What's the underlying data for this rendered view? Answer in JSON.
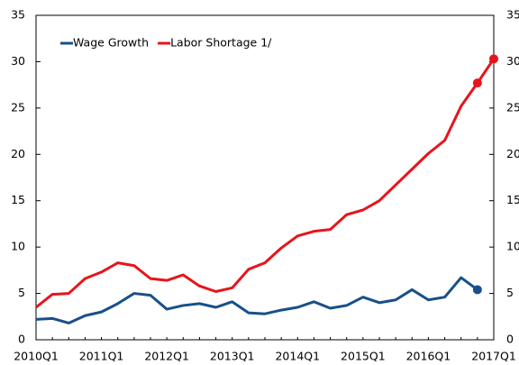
{
  "chart_data": {
    "type": "line",
    "categories": [
      "2010Q1",
      "2010Q2",
      "2010Q3",
      "2010Q4",
      "2011Q1",
      "2011Q2",
      "2011Q3",
      "2011Q4",
      "2012Q1",
      "2012Q2",
      "2012Q3",
      "2012Q4",
      "2013Q1",
      "2013Q2",
      "2013Q3",
      "2013Q4",
      "2014Q1",
      "2014Q2",
      "2014Q3",
      "2014Q4",
      "2015Q1",
      "2015Q2",
      "2015Q3",
      "2015Q4",
      "2016Q1",
      "2016Q2",
      "2016Q3",
      "2016Q4",
      "2017Q1"
    ],
    "x_label_every": 4,
    "series": [
      {
        "name": "Wage Growth",
        "color": "#17508a",
        "markers": [
          27
        ],
        "values": [
          2.2,
          2.3,
          1.8,
          2.6,
          3.0,
          3.9,
          5.0,
          4.8,
          3.3,
          3.7,
          3.9,
          3.5,
          4.1,
          2.9,
          2.8,
          3.2,
          3.5,
          4.1,
          3.4,
          3.7,
          4.6,
          4.0,
          4.3,
          5.4,
          4.3,
          4.6,
          6.7,
          5.4,
          null
        ]
      },
      {
        "name": "Labor Shortage 1/",
        "color": "#e8141b",
        "markers": [
          27,
          28
        ],
        "values": [
          3.5,
          4.9,
          5.0,
          6.6,
          7.3,
          8.3,
          8.0,
          6.6,
          6.4,
          7.0,
          5.8,
          5.2,
          5.6,
          7.6,
          8.3,
          9.9,
          11.2,
          11.7,
          11.9,
          13.5,
          14.0,
          15.0,
          16.7,
          18.4,
          20.1,
          21.5,
          25.2,
          27.7,
          30.3
        ]
      }
    ],
    "ylim": [
      0,
      35
    ],
    "yticks": [
      0,
      5,
      10,
      15,
      20,
      25,
      30,
      35
    ],
    "y2lim": [
      0,
      35
    ],
    "y2ticks": [
      0,
      5,
      10,
      15,
      20,
      25,
      30,
      35
    ],
    "legend": "top-left"
  }
}
